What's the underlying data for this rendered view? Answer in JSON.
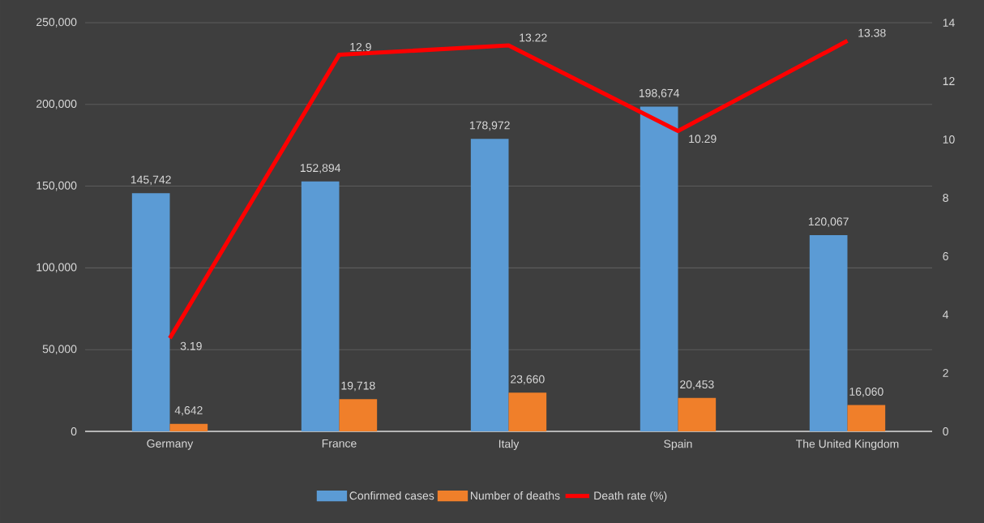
{
  "chart_data": {
    "type": "bar",
    "categories": [
      "Germany",
      "France",
      "Italy",
      "Spain",
      "The United Kingdom"
    ],
    "series": [
      {
        "name": "Confirmed cases",
        "color": "#5b9bd5",
        "values": [
          145742,
          152894,
          178972,
          198674,
          120067
        ],
        "value_labels": [
          "145,742",
          "152,894",
          "178,972",
          "198,674",
          "120,067"
        ]
      },
      {
        "name": "Number of deaths",
        "color": "#f07f2a",
        "values": [
          4642,
          19718,
          23660,
          20453,
          16060
        ],
        "value_labels": [
          "4,642",
          "19,718",
          "23,660",
          "20,453",
          "16,060"
        ]
      },
      {
        "name": "Death rate (%)",
        "color": "#ff0000",
        "type": "line",
        "axis": "y2",
        "values": [
          3.19,
          12.9,
          13.22,
          10.29,
          13.38
        ],
        "value_labels": [
          "3.19",
          "12.9",
          "13.22",
          "10.29",
          "13.38"
        ]
      }
    ],
    "ylim": [
      0,
      250000
    ],
    "yticks": [
      0,
      {
        "value": 50000,
        "label": "50,000"
      },
      {
        "value": 100000,
        "label": "100,000"
      },
      {
        "value": 150000,
        "label": "150,000"
      },
      {
        "value": 200000,
        "label": "200,000"
      },
      {
        "value": 250000,
        "label": "250,000"
      }
    ],
    "y2lim": [
      0,
      14
    ],
    "y2ticks": [
      0,
      2,
      4,
      6,
      8,
      10,
      12,
      14
    ],
    "grid": "y",
    "legend": "bottom"
  }
}
